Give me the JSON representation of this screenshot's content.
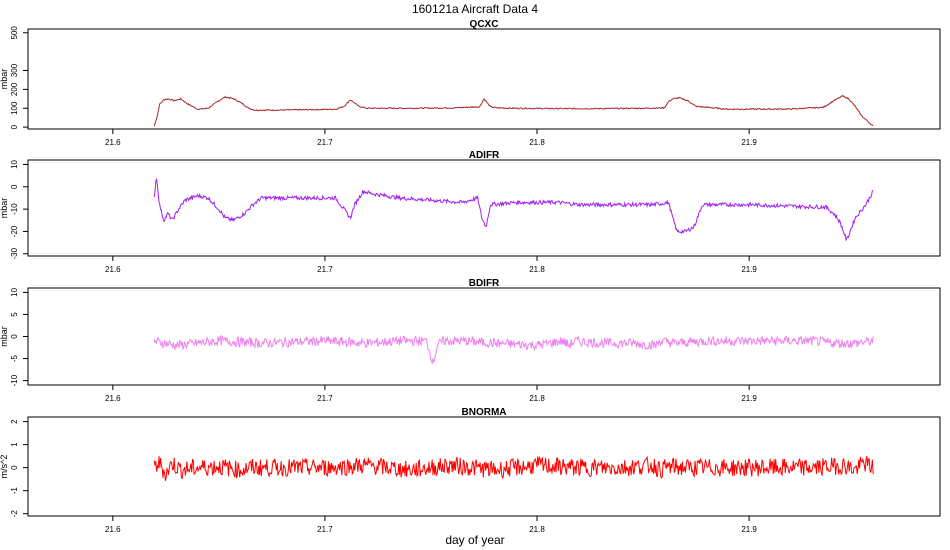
{
  "title": "160121a   Aircraft Data 4",
  "xlabel": "day of year",
  "x_ticks": [
    "21.6",
    "21.7",
    "21.8",
    "21.9"
  ],
  "chart_data": [
    {
      "type": "line",
      "title": "QCXC",
      "ylabel": "mbar",
      "xlim": [
        21.56,
        21.99
      ],
      "ylim": [
        -10,
        520
      ],
      "yticks": [
        "0",
        "100",
        "200",
        "300",
        "500"
      ],
      "ytick_values": [
        0,
        100,
        200,
        300,
        500
      ],
      "color": "#a52a2a",
      "series": [
        {
          "x": [
            21.6195,
            21.621,
            21.622,
            21.624,
            21.626,
            21.629,
            21.632,
            21.635,
            21.64,
            21.645,
            21.65,
            21.653,
            21.657,
            21.661,
            21.664,
            21.667,
            21.675,
            21.69,
            21.705,
            21.709,
            21.712,
            21.716,
            21.72,
            21.74,
            21.76,
            21.773,
            21.775,
            21.778,
            21.781,
            21.79,
            21.81,
            21.83,
            21.85,
            21.86,
            21.862,
            21.864,
            21.867,
            21.871,
            21.875,
            21.89,
            21.92,
            21.935,
            21.94,
            21.944,
            21.947,
            21.95,
            21.953,
            21.957,
            21.9585
          ],
          "y": [
            5,
            60,
            120,
            145,
            150,
            140,
            150,
            125,
            95,
            100,
            140,
            160,
            150,
            125,
            100,
            90,
            90,
            92,
            95,
            110,
            145,
            110,
            100,
            100,
            102,
            108,
            150,
            108,
            102,
            100,
            98,
            98,
            100,
            102,
            135,
            150,
            155,
            140,
            110,
            95,
            96,
            105,
            140,
            165,
            150,
            110,
            60,
            20,
            5
          ]
        }
      ]
    },
    {
      "type": "line",
      "title": "ADIFR",
      "ylabel": "mbar",
      "xlim": [
        21.56,
        21.99
      ],
      "ylim": [
        -31,
        12
      ],
      "yticks": [
        "-30",
        "-20",
        "-10",
        "0",
        "10"
      ],
      "ytick_values": [
        -30,
        -20,
        -10,
        0,
        10
      ],
      "color": "#a020f0",
      "series": [
        {
          "x": [
            21.6195,
            21.6205,
            21.622,
            21.624,
            21.626,
            21.628,
            21.631,
            21.634,
            21.64,
            21.645,
            21.65,
            21.653,
            21.657,
            21.662,
            21.666,
            21.67,
            21.69,
            21.705,
            21.709,
            21.712,
            21.714,
            21.718,
            21.722,
            21.735,
            21.75,
            21.765,
            21.772,
            21.774,
            21.776,
            21.778,
            21.79,
            21.81,
            21.82,
            21.84,
            21.855,
            21.862,
            21.864,
            21.866,
            21.87,
            21.874,
            21.878,
            21.9,
            21.93,
            21.936,
            21.94,
            21.943,
            21.946,
            21.95,
            21.955,
            21.9585
          ],
          "y": [
            -5,
            5,
            -8,
            -15,
            -12,
            -15,
            -10,
            -6,
            -4,
            -5,
            -10,
            -14,
            -15,
            -12,
            -8,
            -5,
            -5,
            -5,
            -10,
            -14,
            -8,
            -2,
            -3,
            -5,
            -6,
            -7,
            -5,
            -14,
            -18,
            -8,
            -7,
            -7,
            -8,
            -8,
            -8,
            -7,
            -14,
            -20,
            -20,
            -18,
            -8,
            -8,
            -9,
            -9,
            -12,
            -16,
            -24,
            -14,
            -8,
            -2
          ]
        }
      ]
    },
    {
      "type": "line",
      "title": "BDIFR",
      "ylabel": "mbar",
      "xlim": [
        21.56,
        21.99
      ],
      "ylim": [
        -11,
        11
      ],
      "yticks": [
        "-10",
        "-5",
        "0",
        "5",
        "10"
      ],
      "ytick_values": [
        -10,
        -5,
        0,
        5,
        10
      ],
      "color": "#ee82ee",
      "series": [
        {
          "x": [
            21.6195,
            21.63,
            21.65,
            21.67,
            21.7,
            21.72,
            21.735,
            21.748,
            21.751,
            21.753,
            21.756,
            21.765,
            21.78,
            21.8,
            21.812,
            21.815,
            21.818,
            21.83,
            21.845,
            21.856,
            21.858,
            21.865,
            21.88,
            21.89,
            21.9,
            21.93,
            21.94,
            21.95,
            21.9585
          ],
          "y": [
            -1,
            -2,
            -1,
            -1.5,
            -1,
            -1.5,
            -1,
            -1,
            -6,
            -2,
            -1,
            -1,
            -1.5,
            -2,
            -1,
            -2,
            -1,
            -1.5,
            -1.5,
            -2,
            -1,
            -1.5,
            -1,
            -1,
            -1,
            -1,
            -1.5,
            -1.5,
            -1
          ]
        }
      ]
    },
    {
      "type": "line",
      "title": "BNORMA",
      "ylabel": "m/s^2",
      "xlim": [
        21.56,
        21.99
      ],
      "ylim": [
        -2.1,
        2.2
      ],
      "yticks": [
        "-2",
        "-1",
        "0",
        "1",
        "2"
      ],
      "ytick_values": [
        -2,
        -1,
        0,
        1,
        2
      ],
      "color": "#ff0000",
      "series": [
        {
          "x": [
            21.6195,
            21.622,
            21.625,
            21.628,
            21.632,
            21.64,
            21.65,
            21.66,
            21.665,
            21.67,
            21.7,
            21.72,
            21.74,
            21.76,
            21.78,
            21.8,
            21.82,
            21.84,
            21.855,
            21.858,
            21.862,
            21.87,
            21.89,
            21.91,
            21.93,
            21.945,
            21.95,
            21.954,
            21.9585
          ],
          "y": [
            0,
            0.2,
            -0.3,
            0.2,
            -0.1,
            0,
            0.05,
            -0.1,
            0,
            0,
            0,
            0.1,
            -0.1,
            0.1,
            -0.1,
            0.1,
            0,
            0,
            0.1,
            -0.1,
            0.05,
            0,
            0,
            0,
            0,
            0.1,
            -0.1,
            0.2,
            0
          ]
        }
      ]
    }
  ]
}
